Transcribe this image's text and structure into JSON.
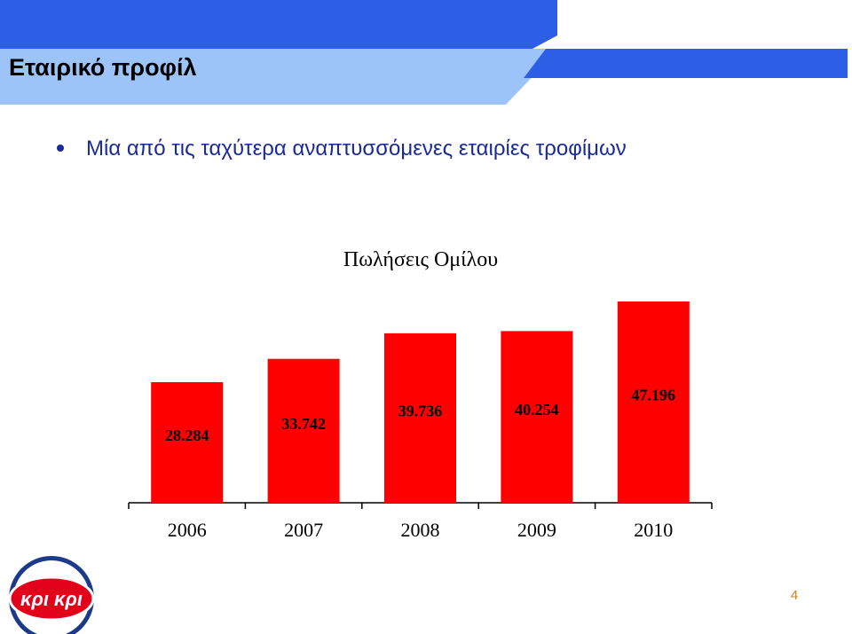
{
  "header": {
    "title": "Εταιρικό προφίλ"
  },
  "bullet": "Μία από τις ταχύτερα αναπτυσσόμενες εταιρίες τροφίμων",
  "chart_data": {
    "type": "bar",
    "title": "Πωλήσεις Ομίλου",
    "categories": [
      "2006",
      "2007",
      "2008",
      "2009",
      "2010"
    ],
    "values": [
      28.284,
      33.742,
      39.736,
      40.254,
      47.196
    ],
    "color": "#ff0000"
  },
  "logo": "κρι κρι",
  "page_number": "4"
}
